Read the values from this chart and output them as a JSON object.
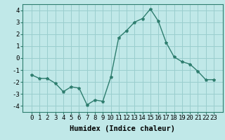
{
  "x": [
    0,
    1,
    2,
    3,
    4,
    5,
    6,
    7,
    8,
    9,
    10,
    11,
    12,
    13,
    14,
    15,
    16,
    17,
    18,
    19,
    20,
    21,
    22,
    23
  ],
  "y": [
    -1.4,
    -1.7,
    -1.7,
    -2.1,
    -2.8,
    -2.4,
    -2.5,
    -3.9,
    -3.5,
    -3.6,
    -1.6,
    1.7,
    2.3,
    3.0,
    3.3,
    4.1,
    3.1,
    1.3,
    0.1,
    -0.3,
    -0.5,
    -1.1,
    -1.8,
    -1.8
  ],
  "title": "",
  "xlabel": "Humidex (Indice chaleur)",
  "line_color": "#2e7d6e",
  "marker": "*",
  "bg_color": "#c0e8e8",
  "grid_color": "#9acece",
  "ylim": [
    -4.5,
    4.5
  ],
  "yticks": [
    -4,
    -3,
    -2,
    -1,
    0,
    1,
    2,
    3,
    4
  ],
  "xticks": [
    0,
    1,
    2,
    3,
    4,
    5,
    6,
    7,
    8,
    9,
    10,
    11,
    12,
    13,
    14,
    15,
    16,
    17,
    18,
    19,
    20,
    21,
    22,
    23
  ],
  "xlabel_fontsize": 7.5,
  "tick_fontsize": 6.5,
  "marker_size": 3,
  "line_width": 1.0
}
